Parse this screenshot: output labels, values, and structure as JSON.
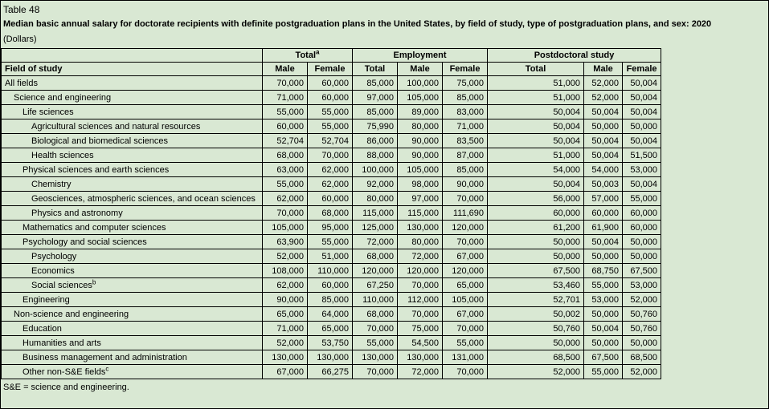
{
  "colors": {
    "background": "#d9e8d3",
    "border": "#000000",
    "text": "#000000"
  },
  "table": {
    "label": "Table 48",
    "title": "Median basic annual salary for doctorate recipients with definite postgraduation plans in the United States, by field of study, type of postgraduation plans, and sex: 2020",
    "units": "(Dollars)",
    "field_col_header": "Field of study",
    "footnote": "S&E = science and engineering.",
    "groups": [
      {
        "label": "Total",
        "sup": "a",
        "cols": [
          "Male",
          "Female"
        ]
      },
      {
        "label": "Employment",
        "sup": "",
        "cols": [
          "Total",
          "Male",
          "Female"
        ]
      },
      {
        "label": "Postdoctoral study",
        "sup": "",
        "cols": [
          "Total",
          "Male",
          "Female"
        ]
      }
    ],
    "rows": [
      {
        "field": "All fields",
        "sup": "",
        "indent": 0,
        "values": [
          "70,000",
          "60,000",
          "85,000",
          "100,000",
          "75,000",
          "51,000",
          "52,000",
          "50,004"
        ]
      },
      {
        "field": "Science and engineering",
        "sup": "",
        "indent": 1,
        "values": [
          "71,000",
          "60,000",
          "97,000",
          "105,000",
          "85,000",
          "51,000",
          "52,000",
          "50,004"
        ]
      },
      {
        "field": "Life sciences",
        "sup": "",
        "indent": 2,
        "values": [
          "55,000",
          "55,000",
          "85,000",
          "89,000",
          "83,000",
          "50,004",
          "50,004",
          "50,004"
        ]
      },
      {
        "field": "Agricultural sciences and natural resources",
        "sup": "",
        "indent": 3,
        "values": [
          "60,000",
          "55,000",
          "75,990",
          "80,000",
          "71,000",
          "50,004",
          "50,000",
          "50,000"
        ]
      },
      {
        "field": "Biological and biomedical sciences",
        "sup": "",
        "indent": 3,
        "values": [
          "52,704",
          "52,704",
          "86,000",
          "90,000",
          "83,500",
          "50,004",
          "50,004",
          "50,004"
        ]
      },
      {
        "field": "Health sciences",
        "sup": "",
        "indent": 3,
        "values": [
          "68,000",
          "70,000",
          "88,000",
          "90,000",
          "87,000",
          "51,000",
          "50,004",
          "51,500"
        ]
      },
      {
        "field": "Physical sciences and earth sciences",
        "sup": "",
        "indent": 2,
        "values": [
          "63,000",
          "62,000",
          "100,000",
          "105,000",
          "85,000",
          "54,000",
          "54,000",
          "53,000"
        ]
      },
      {
        "field": "Chemistry",
        "sup": "",
        "indent": 3,
        "values": [
          "55,000",
          "62,000",
          "92,000",
          "98,000",
          "90,000",
          "50,004",
          "50,003",
          "50,004"
        ]
      },
      {
        "field": "Geosciences, atmospheric sciences, and ocean sciences",
        "sup": "",
        "indent": 3,
        "values": [
          "62,000",
          "60,000",
          "80,000",
          "97,000",
          "70,000",
          "56,000",
          "57,000",
          "55,000"
        ]
      },
      {
        "field": "Physics and astronomy",
        "sup": "",
        "indent": 3,
        "values": [
          "70,000",
          "68,000",
          "115,000",
          "115,000",
          "111,690",
          "60,000",
          "60,000",
          "60,000"
        ]
      },
      {
        "field": "Mathematics and computer sciences",
        "sup": "",
        "indent": 2,
        "values": [
          "105,000",
          "95,000",
          "125,000",
          "130,000",
          "120,000",
          "61,200",
          "61,900",
          "60,000"
        ]
      },
      {
        "field": "Psychology and social sciences",
        "sup": "",
        "indent": 2,
        "values": [
          "63,900",
          "55,000",
          "72,000",
          "80,000",
          "70,000",
          "50,000",
          "50,004",
          "50,000"
        ]
      },
      {
        "field": "Psychology",
        "sup": "",
        "indent": 3,
        "values": [
          "52,000",
          "51,000",
          "68,000",
          "72,000",
          "67,000",
          "50,000",
          "50,000",
          "50,000"
        ]
      },
      {
        "field": "Economics",
        "sup": "",
        "indent": 3,
        "values": [
          "108,000",
          "110,000",
          "120,000",
          "120,000",
          "120,000",
          "67,500",
          "68,750",
          "67,500"
        ]
      },
      {
        "field": "Social sciences",
        "sup": "b",
        "indent": 3,
        "values": [
          "62,000",
          "60,000",
          "67,250",
          "70,000",
          "65,000",
          "53,460",
          "55,000",
          "53,000"
        ]
      },
      {
        "field": "Engineering",
        "sup": "",
        "indent": 2,
        "values": [
          "90,000",
          "85,000",
          "110,000",
          "112,000",
          "105,000",
          "52,701",
          "53,000",
          "52,000"
        ]
      },
      {
        "field": "Non-science and engineering",
        "sup": "",
        "indent": 1,
        "values": [
          "65,000",
          "64,000",
          "68,000",
          "70,000",
          "67,000",
          "50,002",
          "50,000",
          "50,760"
        ]
      },
      {
        "field": "Education",
        "sup": "",
        "indent": 2,
        "values": [
          "71,000",
          "65,000",
          "70,000",
          "75,000",
          "70,000",
          "50,760",
          "50,004",
          "50,760"
        ]
      },
      {
        "field": "Humanities and arts",
        "sup": "",
        "indent": 2,
        "values": [
          "52,000",
          "53,750",
          "55,000",
          "54,500",
          "55,000",
          "50,000",
          "50,000",
          "50,000"
        ]
      },
      {
        "field": "Business management and administration",
        "sup": "",
        "indent": 2,
        "values": [
          "130,000",
          "130,000",
          "130,000",
          "130,000",
          "131,000",
          "68,500",
          "67,500",
          "68,500"
        ]
      },
      {
        "field": "Other non-S&E fields",
        "sup": "c",
        "indent": 2,
        "values": [
          "67,000",
          "66,275",
          "70,000",
          "72,000",
          "70,000",
          "52,000",
          "55,000",
          "52,000"
        ]
      }
    ]
  }
}
